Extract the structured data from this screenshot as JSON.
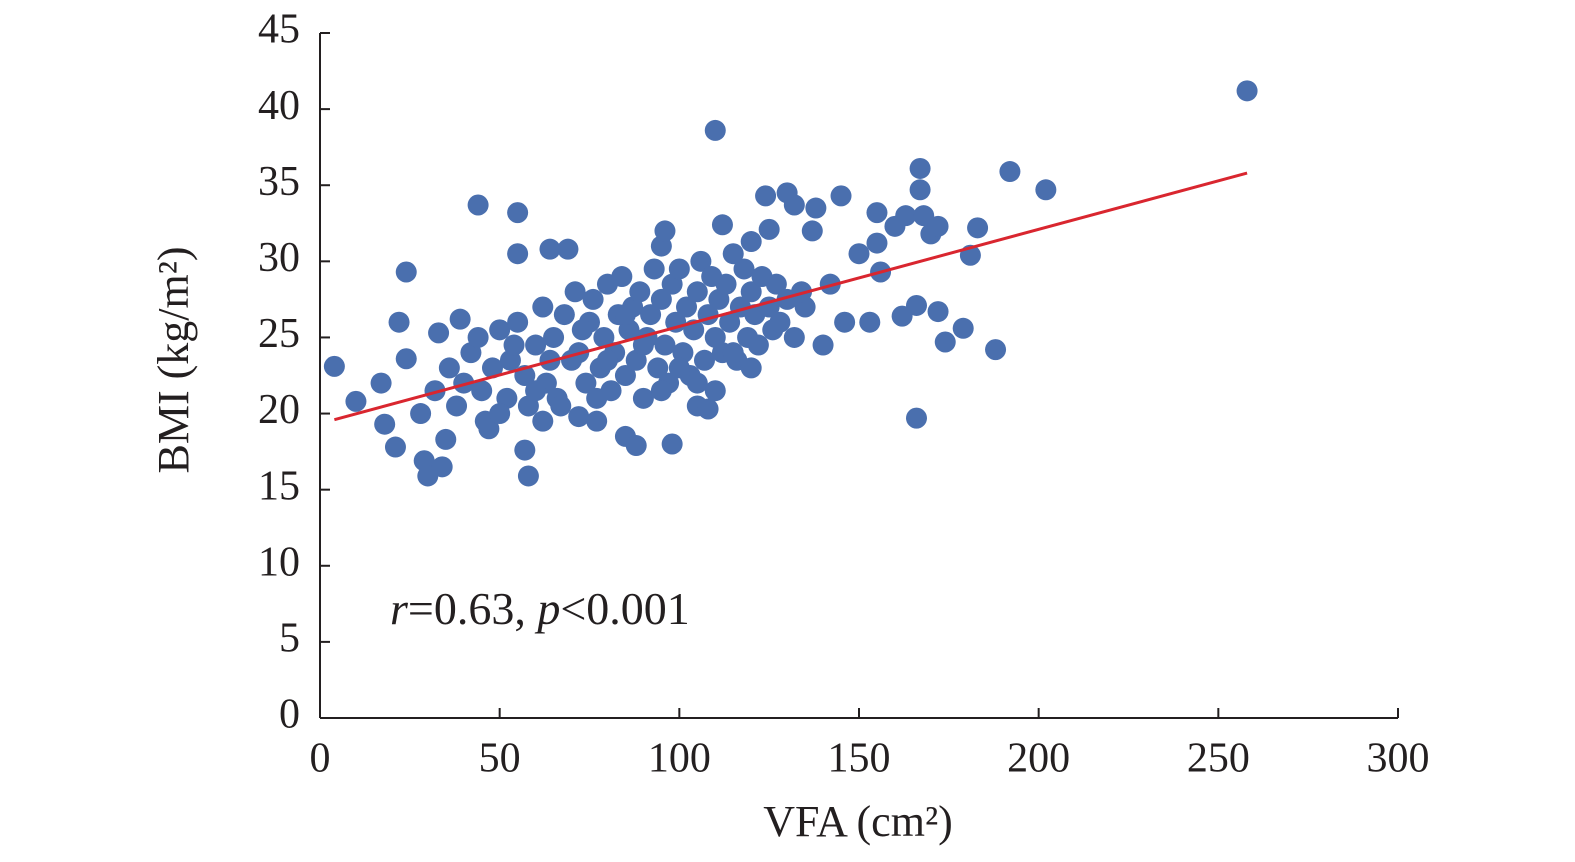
{
  "chart_data": {
    "type": "scatter",
    "xlabel": "VFA (cm²)",
    "ylabel": "BMI (kg/m²)",
    "annotation": [
      "r",
      "=0.63, ",
      "p",
      "<0.001"
    ],
    "xlim": [
      0,
      300
    ],
    "xticks": [
      0,
      50,
      100,
      150,
      200,
      250,
      300
    ],
    "ylim": [
      0,
      45
    ],
    "yticks": [
      0,
      5,
      10,
      15,
      20,
      25,
      30,
      35,
      40,
      45
    ],
    "color": "#4a6fae",
    "x": [
      4,
      10,
      17,
      18,
      21,
      22,
      24,
      24,
      29,
      30,
      34,
      33,
      35,
      39,
      44,
      47,
      55,
      55,
      57,
      58,
      64,
      69,
      62,
      72,
      77,
      85,
      88,
      95,
      96,
      98,
      105,
      108,
      110,
      112,
      120,
      124,
      125,
      130,
      132,
      138,
      140,
      137,
      145,
      146,
      150,
      153,
      155,
      156,
      155,
      160,
      162,
      163,
      166,
      166,
      167,
      167,
      168,
      170,
      172,
      172,
      174,
      179,
      181,
      183,
      188,
      192,
      202,
      258,
      142,
      135,
      40,
      42,
      45,
      48,
      50,
      52,
      53,
      55,
      57,
      58,
      60,
      62,
      63,
      65,
      66,
      68,
      70,
      71,
      72,
      74,
      75,
      76,
      78,
      79,
      80,
      81,
      82,
      83,
      84,
      85,
      86,
      87,
      88,
      89,
      90,
      91,
      92,
      93,
      94,
      95,
      96,
      97,
      98,
      99,
      100,
      101,
      102,
      103,
      104,
      105,
      106,
      107,
      108,
      109,
      110,
      111,
      112,
      113,
      114,
      115,
      116,
      117,
      118,
      119,
      120,
      121,
      122,
      123,
      125,
      126,
      127,
      128,
      130,
      132,
      134,
      28,
      32,
      36,
      38,
      44,
      46,
      50,
      54,
      60,
      64,
      67,
      73,
      77,
      80,
      85,
      90,
      95,
      100,
      105,
      110,
      115,
      120
    ],
    "y": [
      23.1,
      20.8,
      22,
      19.3,
      17.8,
      26,
      29.3,
      23.6,
      16.9,
      15.9,
      16.5,
      25.3,
      18.3,
      26.2,
      33.7,
      19,
      33.2,
      30.5,
      17.6,
      15.9,
      30.8,
      30.8,
      19.5,
      19.8,
      19.5,
      18.5,
      17.9,
      31,
      32,
      18,
      20.5,
      20.3,
      38.6,
      32.4,
      31.3,
      34.3,
      32.1,
      34.5,
      33.7,
      33.5,
      24.5,
      32,
      34.3,
      26,
      30.5,
      26,
      31.2,
      29.3,
      33.2,
      32.3,
      26.4,
      33,
      27.1,
      19.7,
      36.1,
      34.7,
      33,
      31.8,
      26.7,
      32.3,
      24.7,
      25.6,
      30.4,
      32.2,
      24.2,
      35.9,
      34.7,
      41.2,
      28.5,
      27,
      22,
      24,
      21.5,
      23,
      25.5,
      21,
      23.5,
      26,
      22.5,
      20.5,
      24.5,
      27,
      22,
      25,
      21,
      26.5,
      23.5,
      28,
      24,
      22,
      26,
      27.5,
      23,
      25,
      28.5,
      21.5,
      24,
      26.5,
      29,
      22.5,
      25.5,
      27,
      23.5,
      28,
      21,
      25,
      26.5,
      29.5,
      23,
      27.5,
      24.5,
      22,
      28.5,
      26,
      29.5,
      24,
      27,
      22.5,
      25.5,
      28,
      30,
      23.5,
      26.5,
      29,
      25,
      27.5,
      24,
      28.5,
      26,
      30.5,
      23.5,
      27,
      29.5,
      25,
      28,
      26.5,
      24.5,
      29,
      27,
      25.5,
      28.5,
      26,
      27.5,
      25,
      28,
      20,
      21.5,
      23,
      20.5,
      25,
      19.5,
      20,
      24.5,
      21.5,
      23.5,
      20.5,
      25.5,
      21,
      23.5,
      26.5,
      24.5,
      21.5,
      23,
      22,
      21.5,
      24,
      23
    ],
    "trend_line": {
      "color": "#d9262f",
      "x": [
        4,
        258
      ],
      "y": [
        19.6,
        35.8
      ]
    }
  }
}
